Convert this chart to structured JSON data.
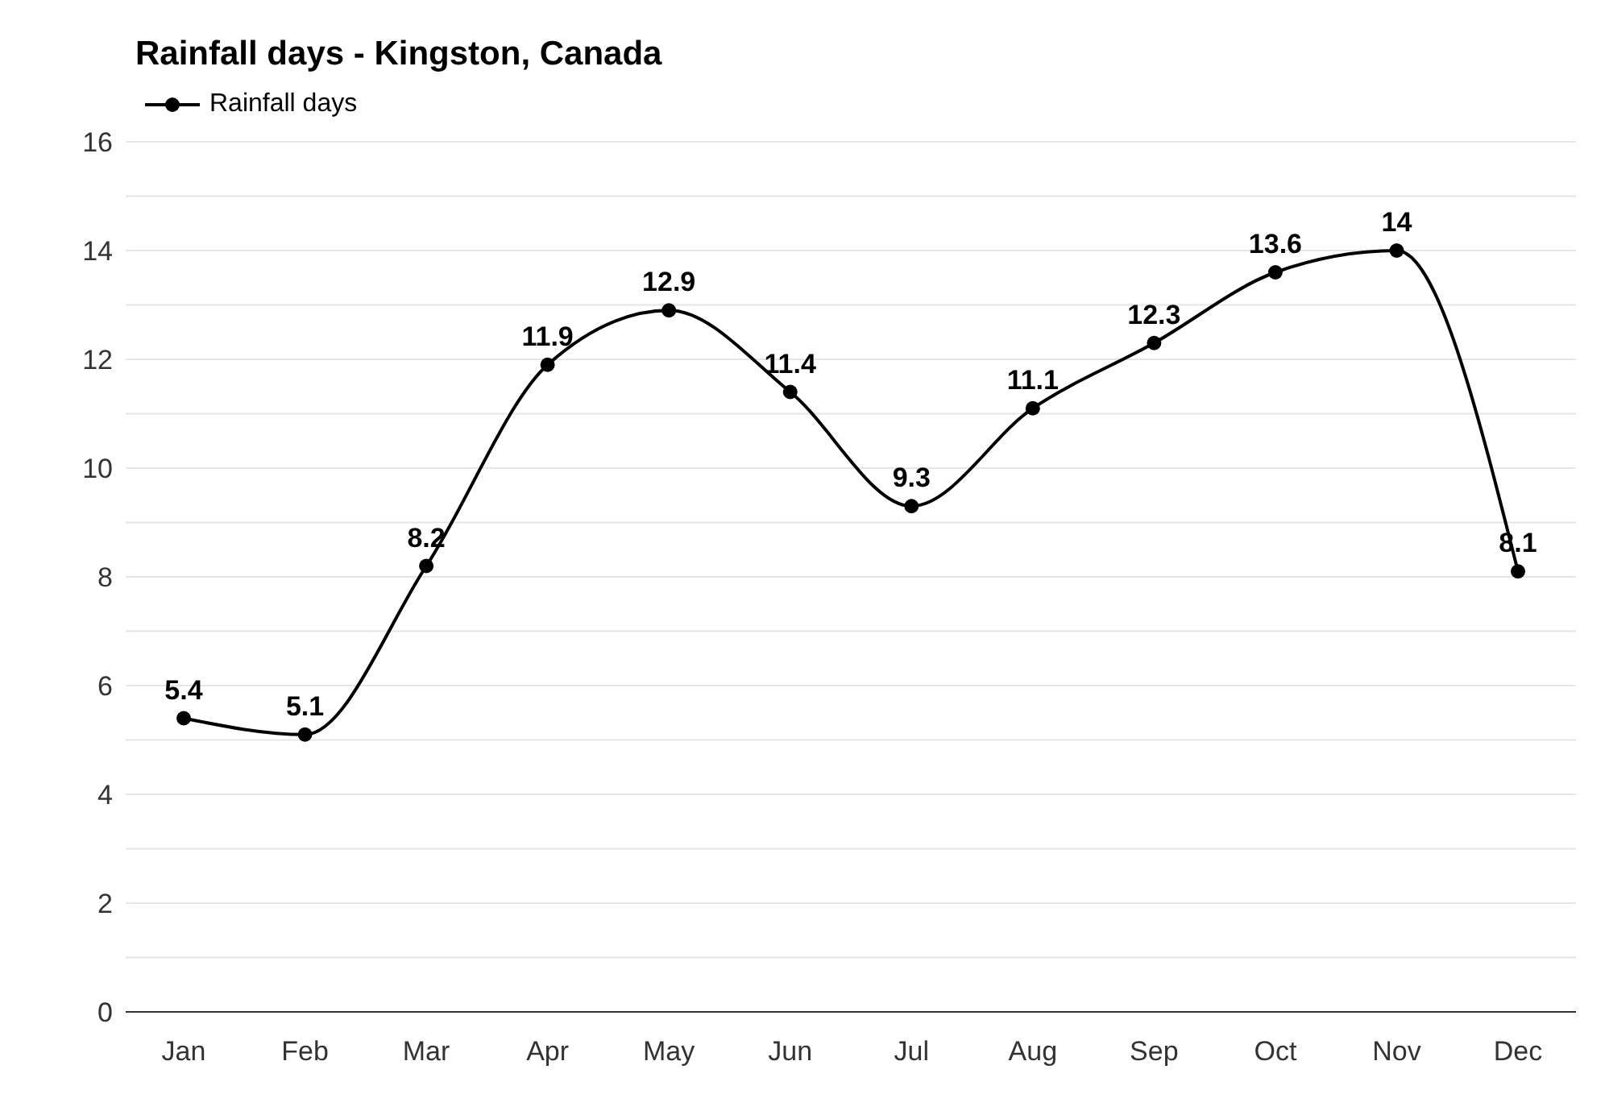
{
  "chart_data": {
    "type": "line",
    "title": "Rainfall days - Kingston, Canada",
    "categories": [
      "Jan",
      "Feb",
      "Mar",
      "Apr",
      "May",
      "Jun",
      "Jul",
      "Aug",
      "Sep",
      "Oct",
      "Nov",
      "Dec"
    ],
    "series": [
      {
        "name": "Rainfall days",
        "color": "#000000",
        "values": [
          5.4,
          5.1,
          8.2,
          11.9,
          12.9,
          11.4,
          9.3,
          11.1,
          12.3,
          13.6,
          14,
          8.1
        ]
      }
    ],
    "ylim": [
      0,
      16
    ],
    "yticks": [
      0,
      {
        "value": 1,
        "label": null
      },
      2,
      {
        "value": 3,
        "label": null
      },
      4,
      {
        "value": 5,
        "label": null
      },
      6,
      {
        "value": 7,
        "label": null
      },
      8,
      {
        "value": 9,
        "label": null
      },
      10,
      {
        "value": 11,
        "label": null
      },
      12,
      {
        "value": 13,
        "label": null
      },
      14,
      {
        "value": 15,
        "label": null
      },
      16
    ],
    "grid": "y",
    "legend": "top left",
    "marker": "circle",
    "line_style": "solid",
    "data_labels": true
  }
}
